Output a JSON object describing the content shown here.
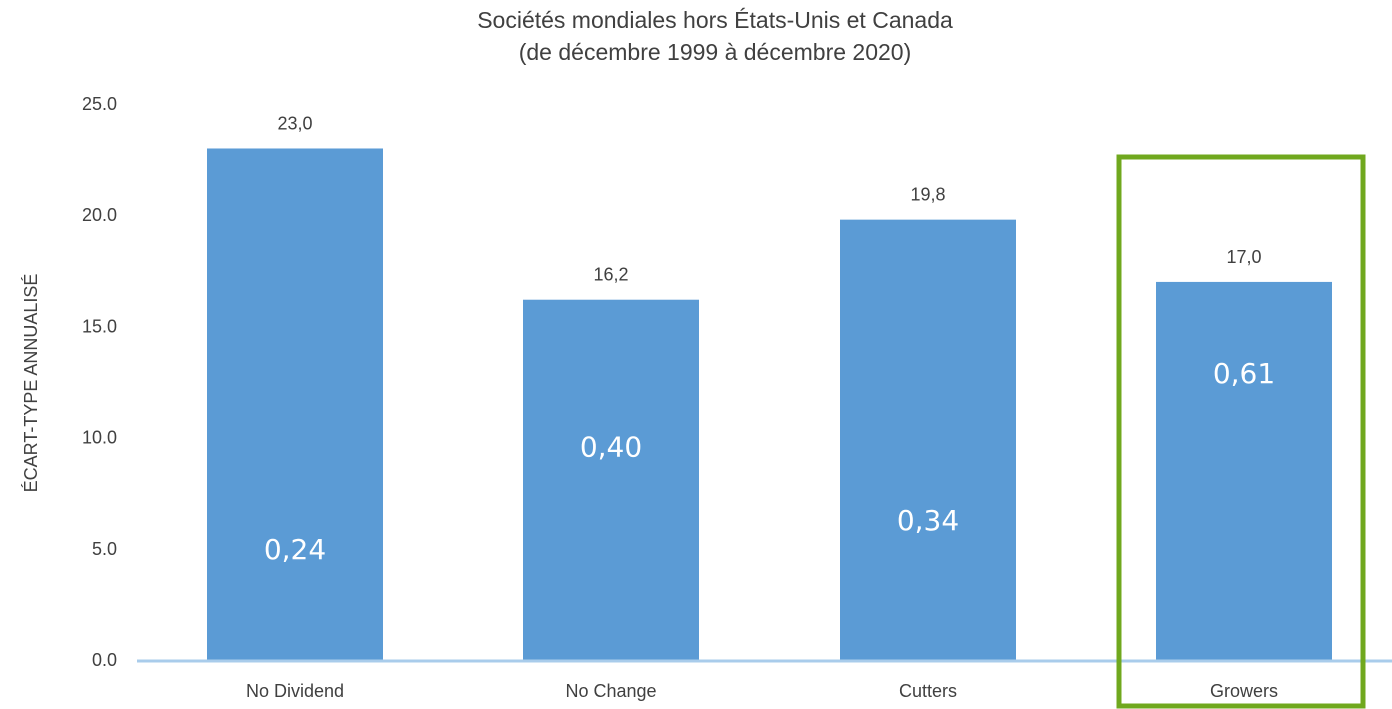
{
  "chart_data": {
    "type": "bar",
    "title": "Sociétés mondiales hors États-Unis et Canada",
    "subtitle": "(de décembre 1999 à décembre 2020)",
    "ylabel": "ÉCART-TYPE ANNUALISÉ",
    "xlabel": "",
    "ylim": [
      0,
      25
    ],
    "yticks": [
      0,
      5,
      10,
      15,
      20,
      25
    ],
    "ytick_labels": [
      "0.0",
      "5.0",
      "10.0",
      "15.0",
      "20.0",
      "25.0"
    ],
    "categories": [
      "No Dividend",
      "No Change",
      "Cutters",
      "Growers"
    ],
    "values": [
      23.0,
      16.2,
      19.8,
      17.0
    ],
    "value_labels": [
      "23,0",
      "16,2",
      "19,8",
      "17,0"
    ],
    "inner_labels": [
      "0,24",
      "0,40",
      "0,34",
      "0,61"
    ],
    "inner_label_levels": [
      5.0,
      9.6,
      6.3,
      12.9
    ],
    "highlighted_category": "Growers",
    "grid": false,
    "colors": {
      "bar": "#5B9BD5",
      "axis_line": "#A9CCEB",
      "highlight_box": "#70A81E",
      "text": "#404040",
      "inner_text": "#FFFFFF"
    }
  }
}
